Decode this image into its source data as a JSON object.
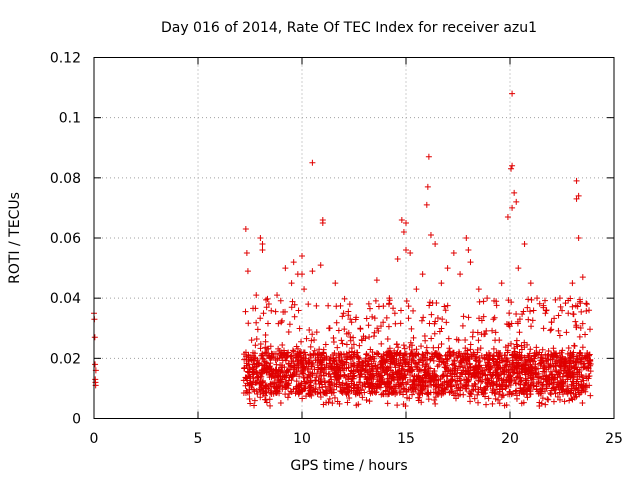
{
  "chart_data": {
    "type": "scatter",
    "title": "Day 016 of 2014, Rate Of TEC Index for receiver azu1",
    "xlabel": "GPS time / hours",
    "ylabel": "ROTI / TECUs",
    "xlim": [
      0,
      25
    ],
    "ylim": [
      0,
      0.12
    ],
    "xticks": [
      0,
      5,
      10,
      15,
      20,
      25
    ],
    "yticks": [
      0,
      0.02,
      0.04,
      0.06,
      0.08,
      0.1,
      0.12
    ],
    "xtick_labels": [
      "0",
      "5",
      "10",
      "15",
      "20",
      "25"
    ],
    "ytick_labels": [
      "0",
      "0.02",
      "0.04",
      "0.06",
      "0.08",
      "0.1",
      "0.12"
    ],
    "grid": true,
    "marker": "+",
    "color": "#e00000",
    "series": [
      {
        "name": "ROTI",
        "x": [
          0.0,
          0.02,
          0.04,
          0.05,
          0.06,
          0.07,
          0.08,
          0.09,
          7.3,
          7.35,
          7.4,
          7.45,
          7.8,
          8.0,
          8.1,
          8.15,
          8.3,
          8.5,
          8.8,
          9.0,
          9.2,
          9.5,
          9.6,
          9.8,
          10.0,
          10.1,
          10.3,
          10.5,
          10.9,
          11.0,
          11.3,
          11.6,
          12.0,
          12.3,
          12.8,
          13.2,
          13.6,
          13.9,
          14.2,
          14.6,
          14.8,
          14.9,
          15.0,
          15.2,
          15.5,
          15.8,
          16.0,
          16.05,
          16.2,
          16.4,
          16.7,
          17.0,
          17.3,
          17.6,
          17.9,
          18.1,
          18.5,
          18.9,
          19.2,
          19.6,
          19.9,
          20.05,
          20.1,
          20.2,
          20.4,
          20.7,
          21.0,
          21.3,
          21.7,
          22.0,
          22.4,
          22.8,
          23.0,
          23.2,
          23.3,
          23.5,
          23.7,
          23.8,
          10.5,
          16.1,
          20.1,
          20.1,
          20.3,
          23.2,
          23.3,
          15.0,
          11.0,
          10.0,
          8.1,
          18.0
        ],
        "y": [
          0.035,
          0.033,
          0.027,
          0.018,
          0.013,
          0.012,
          0.011,
          0.016,
          0.063,
          0.055,
          0.049,
          0.018,
          0.041,
          0.06,
          0.058,
          0.035,
          0.037,
          0.024,
          0.041,
          0.032,
          0.05,
          0.045,
          0.052,
          0.048,
          0.054,
          0.043,
          0.038,
          0.049,
          0.051,
          0.065,
          0.03,
          0.045,
          0.035,
          0.038,
          0.03,
          0.031,
          0.046,
          0.032,
          0.04,
          0.053,
          0.066,
          0.062,
          0.065,
          0.055,
          0.043,
          0.048,
          0.071,
          0.077,
          0.061,
          0.058,
          0.045,
          0.05,
          0.055,
          0.048,
          0.06,
          0.052,
          0.043,
          0.04,
          0.033,
          0.045,
          0.067,
          0.083,
          0.07,
          0.075,
          0.05,
          0.058,
          0.045,
          0.04,
          0.035,
          0.032,
          0.04,
          0.035,
          0.045,
          0.073,
          0.06,
          0.047,
          0.038,
          0.036,
          0.085,
          0.087,
          0.108,
          0.084,
          0.072,
          0.079,
          0.074,
          0.056,
          0.066,
          0.048,
          0.056,
          0.056
        ]
      }
    ],
    "dense_band": {
      "x_range": [
        7.2,
        23.9
      ],
      "y_floor": 0.004,
      "y_typical": [
        0.008,
        0.022
      ],
      "y_upper": [
        0.025,
        0.04
      ]
    }
  }
}
